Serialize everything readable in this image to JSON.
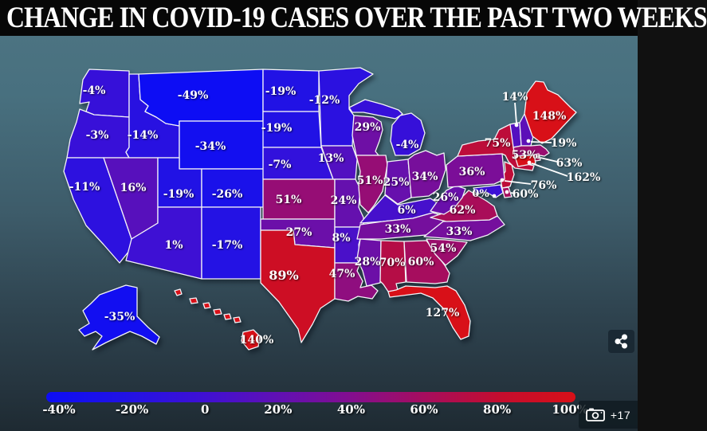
{
  "title": "CHANGE IN COVID-19 CASES OVER THE PAST TWO WEEKS",
  "chart_data": {
    "type": "choropleth",
    "title": "CHANGE IN COVID-19 CASES OVER THE PAST TWO WEEKS",
    "unit": "%",
    "range": [
      -40,
      100
    ],
    "legend": {
      "position": "bottom",
      "ticks": [
        "-40%",
        "-20%",
        "0",
        "20%",
        "40%",
        "60%",
        "80%",
        "100%"
      ],
      "gradient_stops": [
        "#0d0df4",
        "#2012e6",
        "#3c10d6",
        "#5e10b6",
        "#820e90",
        "#a60d5e",
        "#c40d2e",
        "#d81018"
      ]
    },
    "states": [
      {
        "abbr": "WA",
        "name": "Washington",
        "value": -4,
        "label": "-4%"
      },
      {
        "abbr": "OR",
        "name": "Oregon",
        "value": -3,
        "label": "-3%"
      },
      {
        "abbr": "CA",
        "name": "California",
        "value": -11,
        "label": "-11%"
      },
      {
        "abbr": "ID",
        "name": "Idaho",
        "value": -14,
        "label": "-14%"
      },
      {
        "abbr": "MT",
        "name": "Montana",
        "value": -49,
        "label": "-49%"
      },
      {
        "abbr": "WY",
        "name": "Wyoming",
        "value": -34,
        "label": "-34%"
      },
      {
        "abbr": "NV",
        "name": "Nevada",
        "value": 16,
        "label": "16%"
      },
      {
        "abbr": "UT",
        "name": "Utah",
        "value": -19,
        "label": "-19%"
      },
      {
        "abbr": "CO",
        "name": "Colorado",
        "value": -26,
        "label": "-26%"
      },
      {
        "abbr": "AZ",
        "name": "Arizona",
        "value": 1,
        "label": "1%"
      },
      {
        "abbr": "NM",
        "name": "New Mexico",
        "value": -17,
        "label": "-17%"
      },
      {
        "abbr": "ND",
        "name": "North Dakota",
        "value": -19,
        "label": "-19%"
      },
      {
        "abbr": "SD",
        "name": "South Dakota",
        "value": -19,
        "label": "-19%"
      },
      {
        "abbr": "NE",
        "name": "Nebraska",
        "value": -7,
        "label": "-7%"
      },
      {
        "abbr": "KS",
        "name": "Kansas",
        "value": 51,
        "label": "51%"
      },
      {
        "abbr": "OK",
        "name": "Oklahoma",
        "value": 27,
        "label": "27%"
      },
      {
        "abbr": "TX",
        "name": "Texas",
        "value": 89,
        "label": "89%"
      },
      {
        "abbr": "MN",
        "name": "Minnesota",
        "value": -12,
        "label": "-12%"
      },
      {
        "abbr": "IA",
        "name": "Iowa",
        "value": 13,
        "label": "13%"
      },
      {
        "abbr": "MO",
        "name": "Missouri",
        "value": 24,
        "label": "24%"
      },
      {
        "abbr": "AR",
        "name": "Arkansas",
        "value": 8,
        "label": "8%"
      },
      {
        "abbr": "LA",
        "name": "Louisiana",
        "value": 47,
        "label": "47%"
      },
      {
        "abbr": "WI",
        "name": "Wisconsin",
        "value": 29,
        "label": "29%"
      },
      {
        "abbr": "IL",
        "name": "Illinois",
        "value": 51,
        "label": "51%"
      },
      {
        "abbr": "MI",
        "name": "Michigan",
        "value": -4,
        "label": "-4%"
      },
      {
        "abbr": "IN",
        "name": "Indiana",
        "value": 25,
        "label": "25%"
      },
      {
        "abbr": "OH",
        "name": "Ohio",
        "value": 34,
        "label": "34%"
      },
      {
        "abbr": "KY",
        "name": "Kentucky",
        "value": 6,
        "label": "6%"
      },
      {
        "abbr": "TN",
        "name": "Tennessee",
        "value": 33,
        "label": "33%"
      },
      {
        "abbr": "MS",
        "name": "Mississippi",
        "value": 28,
        "label": "28%"
      },
      {
        "abbr": "AL",
        "name": "Alabama",
        "value": 70,
        "label": "70%"
      },
      {
        "abbr": "GA",
        "name": "Georgia",
        "value": 60,
        "label": "60%"
      },
      {
        "abbr": "FL",
        "name": "Florida",
        "value": 127,
        "label": "127%"
      },
      {
        "abbr": "SC",
        "name": "South Carolina",
        "value": 54,
        "label": "54%"
      },
      {
        "abbr": "NC",
        "name": "North Carolina",
        "value": 33,
        "label": "33%"
      },
      {
        "abbr": "VA",
        "name": "Virginia",
        "value": 62,
        "label": "62%"
      },
      {
        "abbr": "WV",
        "name": "West Virginia",
        "value": 26,
        "label": "26%"
      },
      {
        "abbr": "MD",
        "name": "Maryland",
        "value": 0,
        "label": "0%"
      },
      {
        "abbr": "DE",
        "name": "Delaware",
        "value": 60,
        "label": "60%"
      },
      {
        "abbr": "NJ",
        "name": "New Jersey",
        "value": 76,
        "label": "76%"
      },
      {
        "abbr": "PA",
        "name": "Pennsylvania",
        "value": 36,
        "label": "36%"
      },
      {
        "abbr": "NY",
        "name": "New York",
        "value": 75,
        "label": "75%"
      },
      {
        "abbr": "VT",
        "name": "Vermont",
        "value": 14,
        "label": "14%"
      },
      {
        "abbr": "NH",
        "name": "New Hampshire",
        "value": 19,
        "label": "19%"
      },
      {
        "abbr": "MA",
        "name": "Massachusetts",
        "value": 53,
        "label": "53%"
      },
      {
        "abbr": "RI",
        "name": "Rhode Island",
        "value": 63,
        "label": "63%"
      },
      {
        "abbr": "CT",
        "name": "Connecticut",
        "value": 162,
        "label": "162%"
      },
      {
        "abbr": "ME",
        "name": "Maine",
        "value": 148,
        "label": "148%"
      },
      {
        "abbr": "AK",
        "name": "Alaska",
        "value": -35,
        "label": "-35%"
      },
      {
        "abbr": "HI",
        "name": "Hawaii",
        "value": 140,
        "label": "140%"
      }
    ]
  },
  "share_button": {
    "icon": "share-icon"
  },
  "photo_badge": {
    "icon": "camera-icon",
    "label": "+17"
  }
}
